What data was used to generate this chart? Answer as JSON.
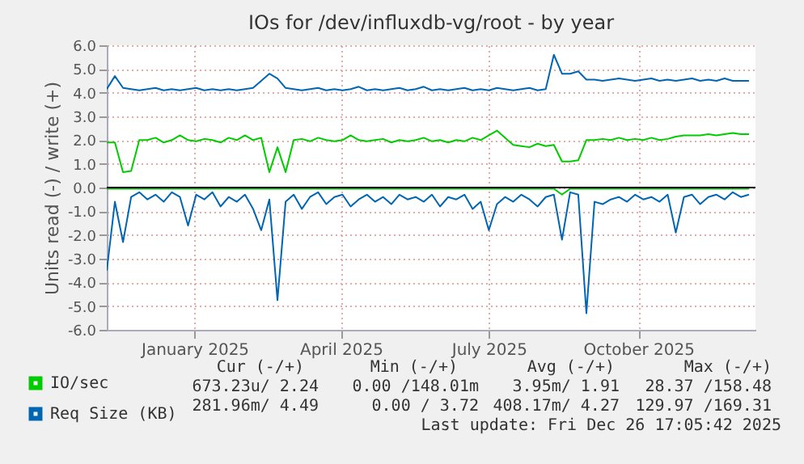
{
  "chart_data": {
    "type": "line",
    "title": "IOs for /dev/influxdb-vg/root - by year",
    "ylabel": "Units read (-) / write (+)",
    "x": [
      "2024-11-22",
      "2024-11-27",
      "2024-12-02",
      "2024-12-07",
      "2024-12-12",
      "2024-12-17",
      "2024-12-22",
      "2024-12-27",
      "2025-01-01",
      "2025-01-06",
      "2025-01-11",
      "2025-01-16",
      "2025-01-21",
      "2025-01-26",
      "2025-01-31",
      "2025-02-05",
      "2025-02-10",
      "2025-02-15",
      "2025-02-20",
      "2025-02-25",
      "2025-03-02",
      "2025-03-07",
      "2025-03-12",
      "2025-03-17",
      "2025-03-22",
      "2025-03-27",
      "2025-04-01",
      "2025-04-06",
      "2025-04-11",
      "2025-04-16",
      "2025-04-21",
      "2025-04-26",
      "2025-05-01",
      "2025-05-06",
      "2025-05-11",
      "2025-05-16",
      "2025-05-21",
      "2025-05-26",
      "2025-05-31",
      "2025-06-05",
      "2025-06-10",
      "2025-06-15",
      "2025-06-20",
      "2025-06-25",
      "2025-06-30",
      "2025-07-05",
      "2025-07-10",
      "2025-07-15",
      "2025-07-20",
      "2025-07-25",
      "2025-07-30",
      "2025-08-04",
      "2025-08-09",
      "2025-08-14",
      "2025-08-19",
      "2025-08-24",
      "2025-08-29",
      "2025-09-03",
      "2025-09-08",
      "2025-09-13",
      "2025-09-18",
      "2025-09-23",
      "2025-09-28",
      "2025-10-03",
      "2025-10-08",
      "2025-10-13",
      "2025-10-18",
      "2025-10-23",
      "2025-10-28",
      "2025-11-02",
      "2025-11-07",
      "2025-11-12",
      "2025-11-17",
      "2025-11-22",
      "2025-11-27",
      "2025-12-02",
      "2025-12-07",
      "2025-12-12",
      "2025-12-17",
      "2025-12-22"
    ],
    "series": [
      {
        "name": "IO/sec",
        "color": "#00cc00",
        "values": [
          1.9,
          1.9,
          0.65,
          0.7,
          2.0,
          2.0,
          2.1,
          1.9,
          2.0,
          2.2,
          2.0,
          1.95,
          2.05,
          2.0,
          1.9,
          2.1,
          2.0,
          2.2,
          2.0,
          2.1,
          0.65,
          1.7,
          0.65,
          2.0,
          2.05,
          1.95,
          2.1,
          2.0,
          1.95,
          2.0,
          2.2,
          2.0,
          1.95,
          2.0,
          2.05,
          1.9,
          2.0,
          1.95,
          2.0,
          2.1,
          1.95,
          2.0,
          1.9,
          2.0,
          1.95,
          2.1,
          2.0,
          2.2,
          2.4,
          2.1,
          1.8,
          1.75,
          1.7,
          1.85,
          1.75,
          1.8,
          1.1,
          1.1,
          1.15,
          2.0,
          2.0,
          2.05,
          2.0,
          2.1,
          2.0,
          2.05,
          2.0,
          2.1,
          2.0,
          2.05,
          2.15,
          2.2,
          2.2,
          2.2,
          2.25,
          2.2,
          2.25,
          2.3,
          2.25,
          2.25
        ]
      },
      {
        "color": "#00cc00",
        "values": [
          -0.05,
          -0.05,
          -0.05,
          -0.05,
          -0.05,
          -0.05,
          -0.05,
          -0.05,
          -0.05,
          -0.05,
          -0.05,
          -0.05,
          -0.05,
          -0.05,
          -0.05,
          -0.05,
          -0.05,
          -0.05,
          -0.05,
          -0.05,
          -0.05,
          -0.05,
          -0.05,
          -0.05,
          -0.05,
          -0.05,
          -0.05,
          -0.05,
          -0.05,
          -0.05,
          -0.05,
          -0.05,
          -0.05,
          -0.05,
          -0.05,
          -0.05,
          -0.05,
          -0.05,
          -0.05,
          -0.05,
          -0.05,
          -0.05,
          -0.05,
          -0.05,
          -0.05,
          -0.05,
          -0.05,
          -0.05,
          -0.05,
          -0.05,
          -0.05,
          -0.05,
          -0.05,
          -0.05,
          -0.05,
          -0.05,
          -0.3,
          -0.05,
          -0.05,
          -0.05,
          -0.05,
          -0.05,
          -0.05,
          -0.05,
          -0.05,
          -0.05,
          -0.05,
          -0.05,
          -0.05,
          -0.05,
          -0.05,
          -0.05,
          -0.05,
          -0.05,
          -0.05,
          -0.05,
          -0.05,
          -0.05,
          -0.05,
          -0.05
        ]
      },
      {
        "name": "Req Size (KB)",
        "color": "#0066b3",
        "values": [
          4.15,
          4.7,
          4.2,
          4.15,
          4.1,
          4.15,
          4.2,
          4.1,
          4.15,
          4.1,
          4.15,
          4.2,
          4.1,
          4.15,
          4.1,
          4.15,
          4.1,
          4.15,
          4.2,
          4.5,
          4.8,
          4.6,
          4.2,
          4.15,
          4.1,
          4.15,
          4.2,
          4.1,
          4.15,
          4.1,
          4.15,
          4.25,
          4.1,
          4.15,
          4.1,
          4.15,
          4.2,
          4.1,
          4.15,
          4.25,
          4.1,
          4.15,
          4.1,
          4.15,
          4.2,
          4.1,
          4.15,
          4.1,
          4.2,
          4.15,
          4.1,
          4.15,
          4.2,
          4.1,
          4.15,
          5.6,
          4.8,
          4.8,
          4.9,
          4.55,
          4.55,
          4.5,
          4.55,
          4.6,
          4.55,
          4.5,
          4.55,
          4.6,
          4.5,
          4.55,
          4.5,
          4.55,
          4.6,
          4.5,
          4.55,
          4.5,
          4.6,
          4.5,
          4.5,
          4.5
        ]
      },
      {
        "color": "#0066b3",
        "values": [
          -3.5,
          -0.6,
          -2.3,
          -0.4,
          -0.2,
          -0.5,
          -0.3,
          -0.6,
          -0.2,
          -0.4,
          -1.6,
          -0.3,
          -0.5,
          -0.2,
          -0.8,
          -0.4,
          -0.6,
          -0.3,
          -0.9,
          -1.8,
          -0.5,
          -4.75,
          -0.6,
          -0.3,
          -0.9,
          -0.4,
          -0.2,
          -0.7,
          -0.4,
          -0.3,
          -0.8,
          -0.5,
          -0.3,
          -0.6,
          -0.4,
          -0.7,
          -0.3,
          -0.5,
          -0.4,
          -0.6,
          -0.3,
          -0.8,
          -0.4,
          -0.5,
          -0.3,
          -0.9,
          -0.6,
          -1.8,
          -0.7,
          -0.4,
          -0.6,
          -0.3,
          -0.5,
          -0.8,
          -0.4,
          -0.3,
          -2.2,
          -0.2,
          -0.3,
          -5.3,
          -0.6,
          -0.7,
          -0.5,
          -0.4,
          -0.6,
          -0.3,
          -0.5,
          -0.4,
          -0.6,
          -0.3,
          -1.9,
          -0.4,
          -0.3,
          -0.7,
          -0.4,
          -0.3,
          -0.5,
          -0.2,
          -0.4,
          -0.3
        ]
      }
    ],
    "xlim": [
      "2024-11-22",
      "2025-12-26"
    ],
    "xticks": [
      {
        "value": "2025-01-15",
        "label": "January 2025"
      },
      {
        "value": "2025-04-15",
        "label": "April 2025"
      },
      {
        "value": "2025-07-15",
        "label": "July 2025"
      },
      {
        "value": "2025-10-15",
        "label": "October 2025"
      }
    ],
    "ylim": [
      -6,
      6
    ],
    "yticks": [
      {
        "value": -6,
        "label": "-6.0"
      },
      {
        "value": -5,
        "label": "-5.0"
      },
      {
        "value": -4,
        "label": "-4.0"
      },
      {
        "value": -3,
        "label": "-3.0"
      },
      {
        "value": -2,
        "label": "-2.0"
      },
      {
        "value": -1,
        "label": "-1.0"
      },
      {
        "value": 0,
        "label": "0.0"
      },
      {
        "value": 1,
        "label": "1.0"
      },
      {
        "value": 2,
        "label": "2.0"
      },
      {
        "value": 3,
        "label": "3.0"
      },
      {
        "value": 4,
        "label": "4.0"
      },
      {
        "value": 5,
        "label": "5.0"
      },
      {
        "value": 6,
        "label": "6.0"
      }
    ],
    "ref_lines": [
      {
        "axis": "y",
        "value": 0,
        "color": "#000000"
      }
    ],
    "grid": true,
    "legend": "bottom left",
    "annotations": [
      "Cur (-/+)",
      "Min (-/+)",
      "Avg (-/+)",
      "Max (-/+)",
      "673.23u/ 2.24",
      "0.00 /148.01m",
      "3.95m/ 1.91",
      "28.37 /158.48",
      "281.96m/ 4.49",
      "0.00 / 3.72",
      "408.17m/ 4.27",
      "129.97 /169.31",
      "Last update: Fri Dec 26 17:05:42 2025"
    ]
  }
}
